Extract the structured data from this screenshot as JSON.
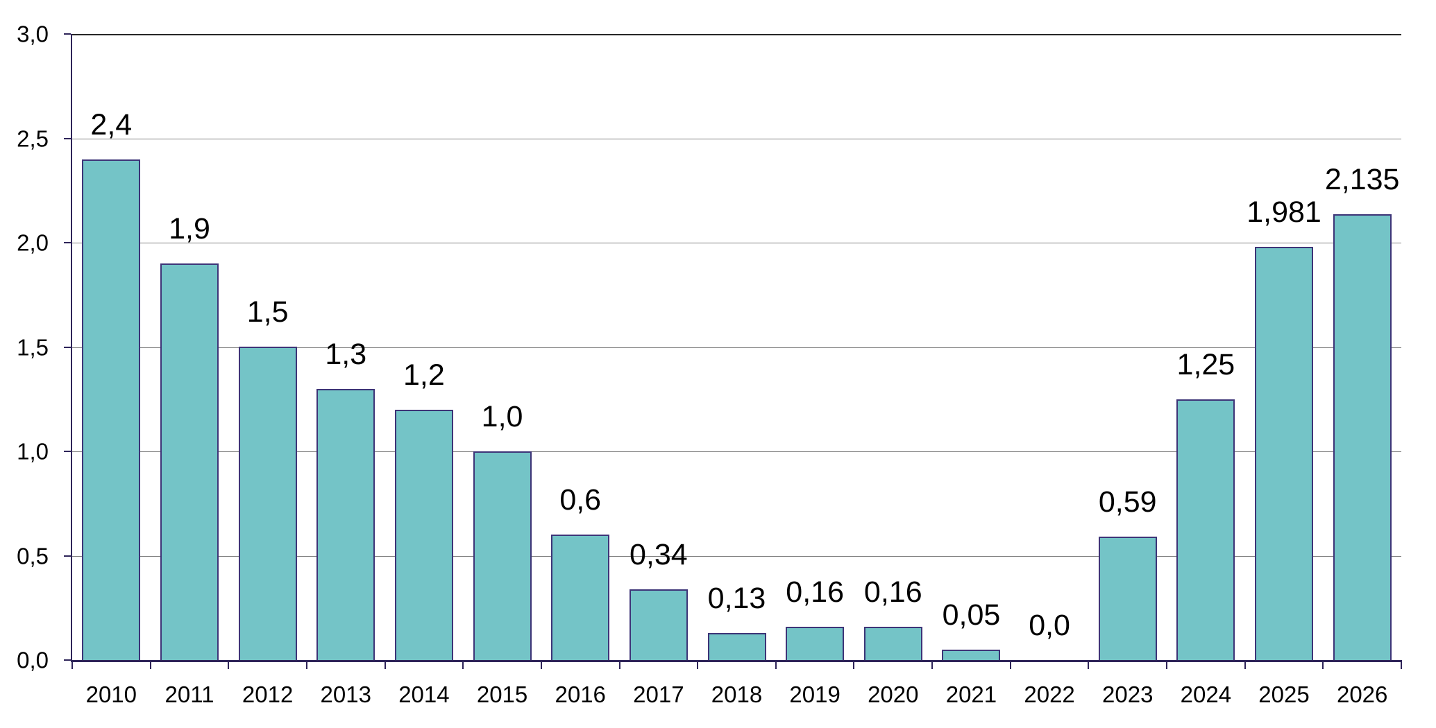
{
  "chart_data": {
    "type": "bar",
    "title": "",
    "xlabel": "",
    "ylabel": "",
    "categories": [
      "2010",
      "2011",
      "2012",
      "2013",
      "2014",
      "2015",
      "2016",
      "2017",
      "2018",
      "2019",
      "2020",
      "2021",
      "2022",
      "2023",
      "2024",
      "2025",
      "2026"
    ],
    "values": [
      2.4,
      1.9,
      1.5,
      1.3,
      1.2,
      1.0,
      0.6,
      0.34,
      0.13,
      0.16,
      0.16,
      0.05,
      0.0,
      0.59,
      1.25,
      1.981,
      2.135
    ],
    "value_labels": [
      "2,4",
      "1,9",
      "1,5",
      "1,3",
      "1,2",
      "1,0",
      "0,6",
      "0,34",
      "0,13",
      "0,16",
      "0,16",
      "0,05",
      "0,0",
      "0,59",
      "1,25",
      "1,981",
      "2,135"
    ],
    "y_axis": {
      "min": 0,
      "max": 3,
      "tick_step": 0.5,
      "tick_values": [
        0,
        0.5,
        1,
        1.5,
        2,
        2.5,
        3
      ],
      "tick_labels": [
        "0,0",
        "0,5",
        "1,0",
        "1,5",
        "2,0",
        "2,5",
        "3,0"
      ]
    },
    "grid": true,
    "legend_position": "none",
    "decimal_separator": ",",
    "colors": {
      "bar_fill": "#74C4C7",
      "bar_border": "#3D3477",
      "axis": "#2E2459",
      "gridline": "#7F7F7F",
      "top_gridline": "#262626",
      "text": "#000000",
      "background": "#FFFFFF"
    }
  }
}
